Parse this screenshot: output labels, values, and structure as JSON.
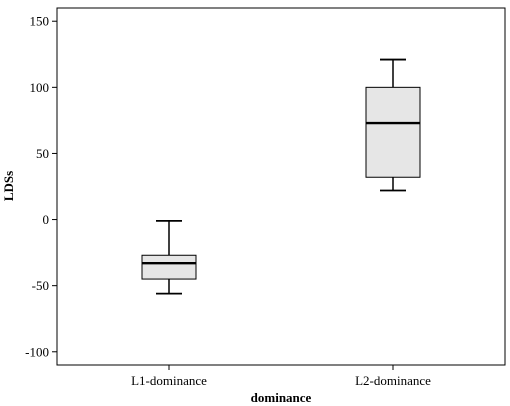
{
  "chart_data": {
    "type": "box",
    "title": "",
    "xlabel": "dominance",
    "ylabel": "LDSs",
    "ylim": [
      -110,
      160
    ],
    "yticks": [
      -100,
      -50,
      0,
      50,
      100,
      150
    ],
    "ytick_labels": [
      "-100",
      "-50",
      "0",
      "50",
      "100",
      "150"
    ],
    "categories": [
      "L1-dominance",
      "L2-dominance"
    ],
    "boxes": [
      {
        "category": "L1-dominance",
        "min": -56,
        "q1": -45,
        "median": -33,
        "q3": -27,
        "max": -1
      },
      {
        "category": "L2-dominance",
        "min": 22,
        "q1": 32,
        "median": 73,
        "q3": 100,
        "max": 121
      }
    ],
    "grid": false,
    "legend": "none"
  },
  "colors": {
    "box_fill": "#e6e6e6",
    "line": "#000000",
    "background": "#ffffff"
  }
}
